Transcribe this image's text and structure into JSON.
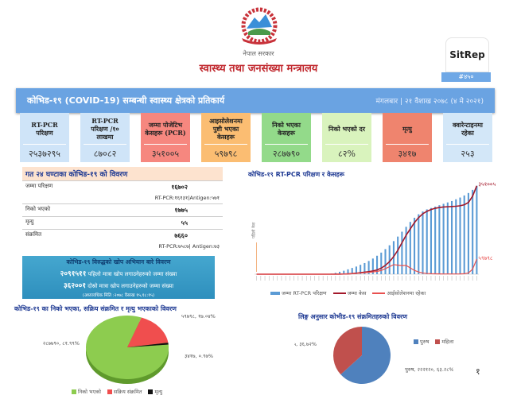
{
  "header": {
    "govt": "नेपाल सरकार",
    "ministry": "स्वास्थ्य तथा जनसंख्या मन्त्रालय",
    "sitrep": "SitRep",
    "sitrep_no": "#४५०"
  },
  "banner": {
    "title": "कोभिड-१९ (COVID-19) सम्बन्धी स्वास्थ्य क्षेत्रको प्रतिकार्य",
    "date": "मंगलबार | २१ वैशाख २०७८ (४ मे २०२१)"
  },
  "cards": [
    {
      "label": "RT-PCR परिक्षण",
      "value": "२५३७२९५",
      "color": "#cfe4f8"
    },
    {
      "label": "RT-PCR परिक्षण /१० लाखमा",
      "value": "८७०८२",
      "color": "#cfe4f8"
    },
    {
      "label": "जम्मा पोजेटिभ केसहरू (PCR)",
      "value": "३५१००५",
      "color": "#f6877f"
    },
    {
      "label": "आइसोलेशनमा पुष्टी भएका केसहरू",
      "value": "५९७९८",
      "color": "#fbbd72"
    },
    {
      "label": "निको भएका केसहरू",
      "value": "२८७७९०",
      "color": "#93da8a"
    },
    {
      "label": "निको भएको दर",
      "value": "८२%",
      "color": "#d9f3bd"
    },
    {
      "label": "मृत्यु",
      "value": "३४१७",
      "color": "#ef846e"
    },
    {
      "label": "क्वारेन्टाइनमा रहेका",
      "value": "२५३",
      "color": "#d3e7f8"
    }
  ],
  "last24": {
    "title": "गत २४ घण्टाका कोभिड-१९ को विवरण",
    "rows": [
      {
        "label": "जम्मा परिक्षण",
        "value": "१६७०२",
        "sub": "RT-PCR:१६१३१|Antigen:५७१"
      },
      {
        "label": "निको भएको",
        "value": "१७७५",
        "sub": ""
      },
      {
        "label": "मृत्यु",
        "value": "५५",
        "sub": ""
      },
      {
        "label": "संक्रमित",
        "value": "७६६०",
        "sub": "RT-PCR:७५८७| Antigen:७३"
      }
    ]
  },
  "vaccine": {
    "title": "कोभिड-१९ विरुद्धको खोप अभियान बारे विवरण",
    "first_value": "२०९१५११",
    "first_label": "पहिलो मात्रा खोप लगाउनेहरुको जम्मा संख्या",
    "second_value": "३६२००१",
    "second_label": "दोस्रो मात्रा खोप लगाउनेहरुको जम्मा संख्या",
    "updated": "(अध्यावधिक मिति :२०७८ वैसाख १५,१८:१५)"
  },
  "page_number": "१",
  "chart_data": [
    {
      "type": "bar+line",
      "title": "कोभिड-१९ RT-PCR परिक्षण र केसहरू",
      "annotation": "पहिलो केस",
      "end_labels": {
        "cases": "३५१००५",
        "isolation": "५९७९८"
      },
      "series": [
        {
          "name": "जम्मा RT-PCR परिक्षण",
          "type": "bar",
          "color": "#5b9bd5",
          "ylim": [
            0,
            2600000
          ],
          "values": [
            0,
            0,
            0,
            0,
            0,
            0,
            0,
            0,
            0,
            0,
            0,
            0,
            0,
            0,
            0,
            0,
            5000,
            10000,
            20000,
            40000,
            70000,
            100000,
            140000,
            180000,
            220000,
            270000,
            320000,
            380000,
            450000,
            530000,
            620000,
            720000,
            830000,
            950000,
            1080000,
            1220000,
            1360000,
            1500000,
            1620000,
            1720000,
            1800000,
            1860000,
            1900000,
            1940000,
            1980000,
            2020000,
            2060000,
            2100000,
            2150000,
            2200000,
            2260000,
            2330000,
            2420000,
            2537295
          ]
        },
        {
          "name": "जम्मा केस",
          "type": "line",
          "color": "#a3182a",
          "ylim": [
            0,
            360000
          ],
          "values": [
            0,
            0,
            0,
            0,
            0,
            0,
            0,
            0,
            0,
            0,
            0,
            0,
            0,
            0,
            0,
            0,
            0,
            0,
            0,
            100,
            300,
            800,
            1500,
            2500,
            4000,
            6000,
            8000,
            10000,
            13000,
            17000,
            24000,
            35000,
            50000,
            70000,
            95000,
            125000,
            155000,
            180000,
            205000,
            225000,
            240000,
            250000,
            257000,
            262000,
            265000,
            267000,
            268000,
            269000,
            270000,
            272000,
            276000,
            285000,
            310000,
            351005
          ]
        },
        {
          "name": "आईसोलेशनमा रहेका",
          "type": "line",
          "color": "#e8504f",
          "ylim": [
            0,
            360000
          ],
          "values": [
            0,
            0,
            0,
            0,
            0,
            0,
            0,
            0,
            0,
            0,
            0,
            0,
            0,
            0,
            0,
            0,
            0,
            0,
            0,
            100,
            300,
            700,
            1200,
            2000,
            3000,
            4500,
            6000,
            7500,
            9000,
            11000,
            15000,
            22000,
            30000,
            38000,
            36000,
            34000,
            35000,
            25000,
            15000,
            9000,
            5000,
            3000,
            2000,
            1500,
            1200,
            1000,
            1000,
            1000,
            1000,
            1200,
            2000,
            5000,
            20000,
            59798
          ]
        }
      ]
    },
    {
      "type": "pie",
      "title": "कोभिड-१९ का निको भएका, सक्रिय संक्रमित र मृत्यु भएकाको विवरण",
      "slices": [
        {
          "name": "निको भएको",
          "value": 287790,
          "label": "२८७७९०, ८१.९९%",
          "color": "#8dcc4f"
        },
        {
          "name": "सक्रिय संक्रमित",
          "value": 59798,
          "label": "५९७९८, १७.०४%",
          "color": "#f04e4e"
        },
        {
          "name": "मृत्यु",
          "value": 3417,
          "label": "३४१७, ०.९७%",
          "color": "#111111"
        }
      ]
    },
    {
      "type": "pie",
      "title": "लिङ्ग अनुसार कोभीड-१९ संक्रमितहरुको विवरण",
      "slices": [
        {
          "name": "पुरुष",
          "value": 222120,
          "label": "पुरुष, २२२१२०, ६३.२८%",
          "color": "#4f81bd"
        },
        {
          "name": "महिला",
          "value": 128885,
          "label": "महिला, १२८८८५, ३६.७२%",
          "color": "#c0504d"
        }
      ]
    }
  ]
}
